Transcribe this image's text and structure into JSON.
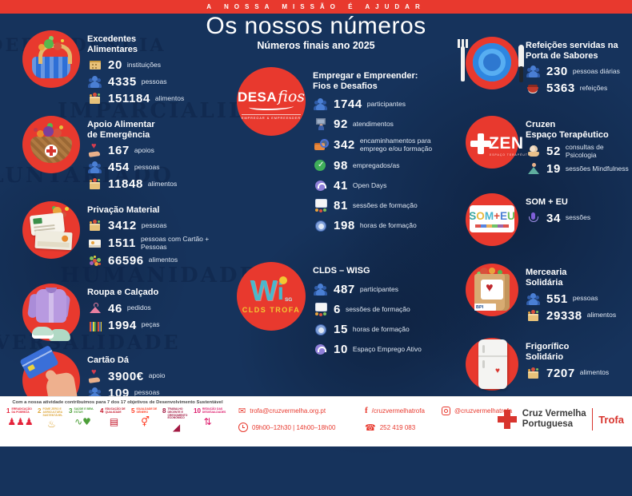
{
  "banner": {
    "text": "A NOSSA MISSÃO É AJUDAR"
  },
  "header": {
    "title": "Os nossos números",
    "subtitle": "Números finais ano 2025"
  },
  "watermarks": [
    "INDEPENDÊNCIA",
    "IMPARCIALIDADE",
    "VOLUNTARIADO",
    "HUMANIDADE",
    "UNIVERSALIDADE"
  ],
  "colors": {
    "background": "#16335C",
    "accent_red": "#E8392E",
    "white": "#FFFFFF"
  },
  "columns": {
    "left": [
      {
        "title": "Excedentes\nAlimentares",
        "logo": {
          "type": "basket"
        },
        "stats": [
          {
            "icon": "building",
            "value": "20",
            "label": "instituições"
          },
          {
            "icon": "people",
            "value": "4335",
            "label": "pessoas"
          },
          {
            "icon": "box",
            "value": "151184",
            "label": "alimentos"
          }
        ]
      },
      {
        "title": "Apoio Alimentar\nde Emergência",
        "logo": {
          "type": "fbasket"
        },
        "stats": [
          {
            "icon": "handheart",
            "value": "167",
            "label": "apoios"
          },
          {
            "icon": "people",
            "value": "454",
            "label": "pessoas"
          },
          {
            "icon": "box",
            "value": "11848",
            "label": "alimentos"
          }
        ]
      },
      {
        "title": "Privação Material",
        "logo": {
          "type": "cards"
        },
        "stats": [
          {
            "icon": "box",
            "value": "3412",
            "label": "pessoas"
          },
          {
            "icon": "card",
            "value": "1511",
            "label": "pessoas com Cartão + Pessoas"
          },
          {
            "icon": "veggies",
            "value": "66596",
            "label": "alimentos"
          }
        ]
      },
      {
        "title": "Roupa e Calçado",
        "logo": {
          "type": "shirt"
        },
        "stats": [
          {
            "icon": "hanger",
            "value": "46",
            "label": "pedidos"
          },
          {
            "icon": "rack",
            "value": "1994",
            "label": "peças"
          }
        ]
      },
      {
        "title": "Cartão Dá",
        "logo": {
          "type": "handcard"
        },
        "stats": [
          {
            "icon": "handheart",
            "value": "3900€",
            "label": "apoio"
          },
          {
            "icon": "people",
            "value": "109",
            "label": "pessoas"
          }
        ]
      }
    ],
    "middle": [
      {
        "title": "Empregar e Empreender:\nFios e Desafios",
        "logo": {
          "type": "desafios",
          "text1": "DESA",
          "text2": "fios",
          "sub": "EMPREGAR & EMPREENDER"
        },
        "stats": [
          {
            "icon": "people",
            "value": "1744",
            "label": "participantes"
          },
          {
            "icon": "desk",
            "value": "92",
            "label": "atendimentos"
          },
          {
            "icon": "case",
            "value": "342",
            "label": "encaminhamentos para\nemprego e/ou formação"
          },
          {
            "icon": "check",
            "value": "98",
            "label": "empregados/as"
          },
          {
            "icon": "headset",
            "value": "41",
            "label": "Open Days"
          },
          {
            "icon": "board",
            "value": "81",
            "label": "sessões de formação"
          },
          {
            "icon": "clock",
            "value": "198",
            "label": "horas de formação"
          }
        ]
      },
      {
        "title": "CLDS – WISG",
        "logo": {
          "type": "wi",
          "text1": "W",
          "text2": "i",
          "text3": "SG",
          "sub": "CLDS TROFA"
        },
        "stats": [
          {
            "icon": "people",
            "value": "487",
            "label": "participantes"
          },
          {
            "icon": "board",
            "value": "6",
            "label": "sessões de formação"
          },
          {
            "icon": "clock",
            "value": "15",
            "label": "horas de formação"
          },
          {
            "icon": "headset",
            "value": "10",
            "label": "Espaço Emprego Ativo"
          }
        ]
      }
    ],
    "right": [
      {
        "title": "Refeições servidas na\nPorta de Sabores",
        "logo": {
          "type": "plate"
        },
        "stats": [
          {
            "icon": "people",
            "value": "230",
            "label": "pessoas diárias"
          },
          {
            "icon": "soup",
            "value": "5363",
            "label": "refeições"
          }
        ]
      },
      {
        "title": "Cruzen\nEspaço Terapêutico",
        "logo": {
          "type": "cruzen",
          "text1": "ZEN",
          "sub": "ESPAÇO TERAPÊUTICO"
        },
        "stats": [
          {
            "icon": "brainhands",
            "value": "52",
            "label": "consultas de Psicologia"
          },
          {
            "icon": "medit",
            "value": "19",
            "label": "sessões Mindfulness"
          }
        ]
      },
      {
        "title": "SOM + EU",
        "logo": {
          "type": "someu",
          "letters": [
            {
              "ch": "S",
              "color": "#3aa7a0"
            },
            {
              "ch": "O",
              "color": "#e8b93c"
            },
            {
              "ch": "M",
              "color": "#46b5d0"
            },
            {
              "ch": "+",
              "color": "#d94f3c"
            },
            {
              "ch": "E",
              "color": "#4a7fd4"
            },
            {
              "ch": "U",
              "color": "#6abf5a"
            }
          ]
        },
        "stats": [
          {
            "icon": "mic",
            "value": "34",
            "label": "sessões"
          }
        ]
      },
      {
        "title": "Mercearia\nSolidária",
        "logo": {
          "type": "bag",
          "sub": "BPI"
        },
        "stats": [
          {
            "icon": "people",
            "value": "551",
            "label": "pessoas"
          },
          {
            "icon": "box",
            "value": "29338",
            "label": "alimentos"
          }
        ]
      },
      {
        "title": "Frigorífico\nSolidário",
        "logo": {
          "type": "fridge"
        },
        "stats": [
          {
            "icon": "box",
            "value": "7207",
            "label": "alimentos"
          }
        ]
      }
    ]
  },
  "footer": {
    "sdg_caption": "Com a nossa atividade contribuímos para 7 dos 17 objetivos de Desenvolvimento Sustentável",
    "sdgs": [
      {
        "num": "1",
        "label": "ERRADICAÇÃO DA POBREZA",
        "color": "#E5243B",
        "glyph": "♟♟♟"
      },
      {
        "num": "2",
        "label": "FOME ZERO E AGRICULTURA SUSTENTÁVEL",
        "color": "#DDA63A",
        "glyph": "♨"
      },
      {
        "num": "3",
        "label": "SAÚDE E BEM-ESTAR",
        "color": "#4C9F38",
        "glyph": "∿♥"
      },
      {
        "num": "4",
        "label": "EDUCAÇÃO DE QUALIDADE",
        "color": "#C5192D",
        "glyph": "▤"
      },
      {
        "num": "5",
        "label": "IGUALDADE DE GÉNERO",
        "color": "#FF3A21",
        "glyph": "⚥"
      },
      {
        "num": "8",
        "label": "TRABALHO DECENTE E CRESCIMENTO ECONÓMICO",
        "color": "#A21942",
        "glyph": "◢"
      },
      {
        "num": "10",
        "label": "REDUÇÃO DAS DESIGUALDADES",
        "color": "#DD1367",
        "glyph": "⇅"
      }
    ],
    "contacts": {
      "email": "trofa@cruzvermelha.org.pt",
      "facebook": "/cruzvermelhatrofa",
      "instagram": "@cruzvermelhatrofa",
      "hours": "09h00–12h30 | 14h00–18h00",
      "phone": "252 419 083"
    },
    "brand": {
      "name": "Cruz Vermelha\nPortuguesa",
      "region": "Trofa"
    }
  }
}
